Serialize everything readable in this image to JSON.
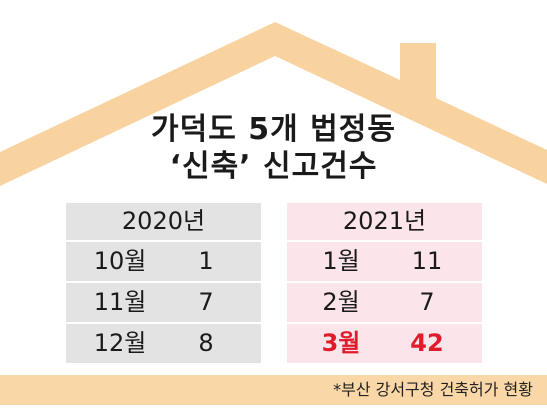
{
  "colors": {
    "roof": "#f8d3a0",
    "panel_2020": "#e3e3e3",
    "panel_2021": "#fbe4ea",
    "highlight": "#e01b2c",
    "footer": "#fad7a6"
  },
  "chart_data": {
    "type": "table",
    "title_line1": "가덕도 5개 법정동",
    "title_line2": "‘신축’ 신고건수",
    "tables": [
      {
        "year": "2020년",
        "rows": [
          {
            "month": "10월",
            "value": "1"
          },
          {
            "month": "11월",
            "value": "7"
          },
          {
            "month": "12월",
            "value": "8"
          }
        ]
      },
      {
        "year": "2021년",
        "rows": [
          {
            "month": "1월",
            "value": "11"
          },
          {
            "month": "2월",
            "value": "7"
          },
          {
            "month": "3월",
            "value": "42",
            "highlight": true
          }
        ]
      }
    ],
    "source": "*부산 강서구청 건축허가 현황"
  }
}
